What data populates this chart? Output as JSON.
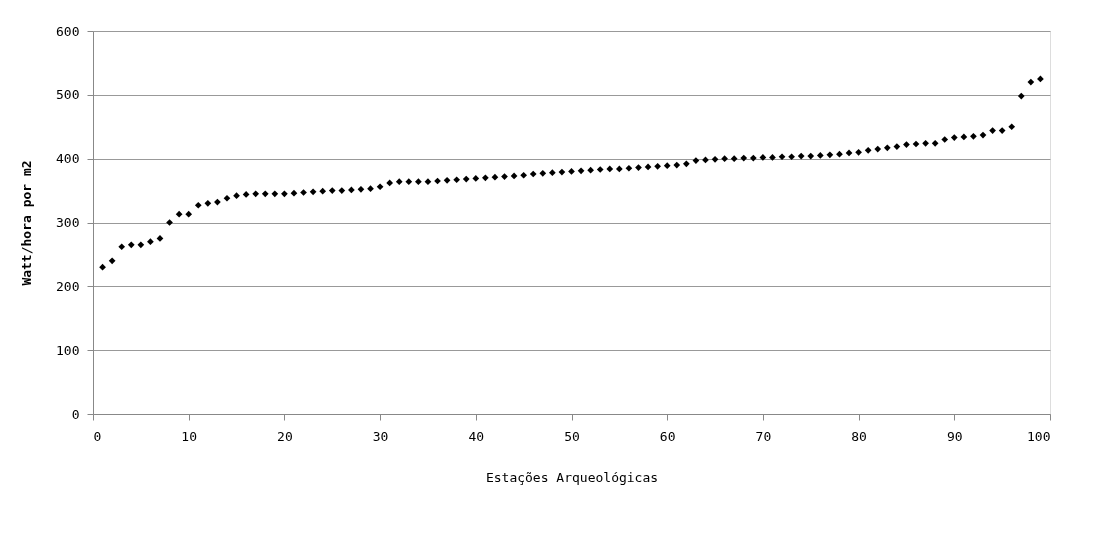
{
  "chart_data": {
    "type": "scatter",
    "xlabel": "Estações Arqueológicas",
    "ylabel": "Watt/hora por m2",
    "x": [
      1,
      2,
      3,
      4,
      5,
      6,
      7,
      8,
      9,
      10,
      11,
      12,
      13,
      14,
      15,
      16,
      17,
      18,
      19,
      20,
      21,
      22,
      23,
      24,
      25,
      26,
      27,
      28,
      29,
      30,
      31,
      32,
      33,
      34,
      35,
      36,
      37,
      38,
      39,
      40,
      41,
      42,
      43,
      44,
      45,
      46,
      47,
      48,
      49,
      50,
      51,
      52,
      53,
      54,
      55,
      56,
      57,
      58,
      59,
      60,
      61,
      62,
      63,
      64,
      65,
      66,
      67,
      68,
      69,
      70,
      71,
      72,
      73,
      74,
      75,
      76,
      77,
      78,
      79,
      80,
      81,
      82,
      83,
      84,
      85,
      86,
      87,
      88,
      89,
      90,
      91,
      92,
      93,
      94,
      95,
      96,
      97,
      98,
      99
    ],
    "series": [
      {
        "color": "#000000",
        "values": [
          230,
          240,
          262,
          265,
          265,
          270,
          275,
          300,
          313,
          313,
          327,
          330,
          332,
          338,
          342,
          344,
          345,
          345,
          345,
          345,
          346,
          347,
          348,
          349,
          350,
          350,
          351,
          352,
          353,
          356,
          362,
          364,
          364,
          364,
          364,
          365,
          366,
          367,
          368,
          369,
          370,
          371,
          372,
          373,
          374,
          376,
          377,
          378,
          379,
          380,
          381,
          382,
          383,
          384,
          384,
          385,
          386,
          387,
          388,
          389,
          390,
          392,
          397,
          398,
          399,
          400,
          400,
          401,
          401,
          402,
          402,
          403,
          403,
          404,
          404,
          405,
          406,
          407,
          409,
          410,
          413,
          415,
          417,
          419,
          422,
          423,
          424,
          424,
          430,
          433,
          434,
          435,
          437,
          444,
          444,
          450,
          498,
          520,
          525
        ]
      }
    ],
    "xlim": [
      0,
      100
    ],
    "xticks": [
      0,
      10,
      20,
      30,
      40,
      50,
      60,
      70,
      80,
      90,
      100
    ],
    "ylim": [
      0,
      600
    ],
    "yticks": [
      0,
      100,
      200,
      300,
      400,
      500,
      600
    ],
    "grid": "y",
    "marker": "diamond",
    "legend": false
  }
}
